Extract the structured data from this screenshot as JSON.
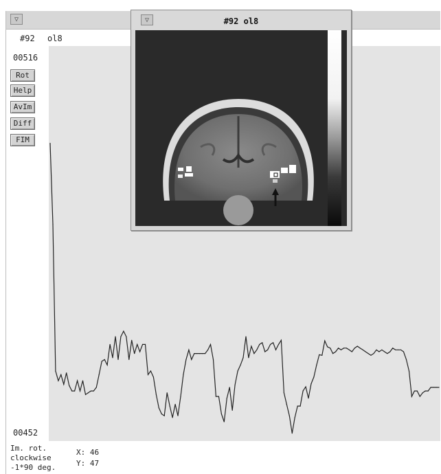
{
  "main_window": {
    "menu_icon": "window-menu-icon",
    "info": {
      "image_number": "#92",
      "dataset": "ol8"
    },
    "counter_top": "00516",
    "counter_bottom": "00452",
    "buttons": [
      {
        "label": "Rot"
      },
      {
        "label": "Help"
      },
      {
        "label": "AvIm"
      },
      {
        "label": "Diff"
      },
      {
        "label": "FIM"
      }
    ],
    "status": {
      "line1": "Im. rot.",
      "line2": "clockwise",
      "line3": "-1*90 deg.",
      "x_label": "X: 46",
      "y_label": "Y: 47"
    }
  },
  "popup_window": {
    "title": "#92  ol8",
    "menu_icon": "window-menu-icon"
  },
  "chart_data": {
    "type": "line",
    "title": "",
    "xlabel": "",
    "ylabel": "",
    "ylim": [
      452,
      516
    ],
    "x": [
      0,
      1,
      2,
      3,
      4,
      5,
      6,
      7,
      8,
      9,
      10,
      11,
      12,
      13,
      14,
      15,
      16,
      17,
      18,
      19,
      20,
      21,
      22,
      23,
      24,
      25,
      26,
      27,
      28,
      29,
      30,
      31,
      32,
      33,
      34,
      35,
      36,
      37,
      38,
      39,
      40,
      41,
      42,
      43,
      44,
      45,
      46,
      47,
      48,
      49,
      50,
      51,
      52,
      53,
      54,
      55,
      56,
      57,
      58,
      59,
      60,
      61,
      62,
      63,
      64,
      65,
      66,
      67,
      68,
      69,
      70,
      71,
      72,
      73,
      74,
      75,
      76,
      77,
      78,
      79,
      80,
      81,
      82,
      83,
      84,
      85,
      86,
      87,
      88,
      89,
      90,
      91,
      92,
      93,
      94,
      95,
      96,
      97,
      98,
      99,
      100,
      101,
      102,
      103,
      104,
      105,
      106,
      107,
      108,
      109,
      110,
      111,
      112,
      113,
      114,
      115,
      116,
      117,
      118,
      119,
      120,
      121,
      122,
      123,
      124,
      125,
      126,
      127,
      128,
      129,
      130,
      131,
      132,
      133,
      134,
      135,
      136,
      137,
      138,
      139,
      140,
      141,
      142,
      143
    ],
    "series": [
      {
        "values": [
          500.6,
          487.2,
          462.9,
          461.3,
          462.3,
          460.7,
          462.6,
          460.5,
          459.6,
          459.6,
          461.3,
          459.6,
          461.3,
          459.0,
          459.3,
          459.6,
          459.6,
          460.2,
          462.3,
          464.5,
          464.8,
          463.9,
          467.3,
          465.1,
          468.6,
          464.8,
          468.6,
          469.5,
          468.6,
          464.8,
          468.0,
          465.8,
          467.3,
          466.1,
          467.3,
          467.3,
          462.3,
          462.9,
          461.9,
          459.0,
          456.8,
          455.8,
          455.5,
          459.3,
          457.1,
          455.2,
          457.4,
          455.5,
          458.7,
          462.3,
          464.8,
          466.4,
          464.8,
          465.8,
          465.8,
          465.8,
          465.8,
          465.8,
          466.4,
          467.3,
          464.8,
          458.7,
          458.7,
          455.8,
          454.5,
          458.4,
          460.2,
          456.4,
          460.6,
          462.9,
          463.9,
          465.1,
          468.6,
          465.1,
          467.0,
          465.8,
          466.4,
          467.3,
          467.6,
          466.1,
          466.4,
          467.3,
          467.6,
          466.4,
          467.3,
          468.0,
          459.3,
          457.4,
          455.5,
          452.6,
          455.2,
          457.1,
          457.1,
          459.6,
          460.3,
          458.4,
          460.8,
          461.9,
          463.9,
          465.6,
          465.5,
          467.9,
          466.9,
          466.7,
          465.8,
          466.1,
          466.7,
          466.4,
          466.7,
          466.7,
          466.4,
          466.1,
          466.7,
          467.0,
          466.7,
          466.4,
          466.1,
          465.8,
          465.5,
          465.8,
          466.4,
          466.1,
          466.4,
          466.1,
          465.8,
          466.1,
          466.7,
          466.4,
          466.4,
          466.4,
          466.1,
          464.8,
          462.9,
          458.7,
          459.6,
          459.6,
          458.7,
          459.3,
          459.6,
          459.6,
          460.2,
          460.2,
          460.2,
          460.2
        ]
      }
    ]
  }
}
